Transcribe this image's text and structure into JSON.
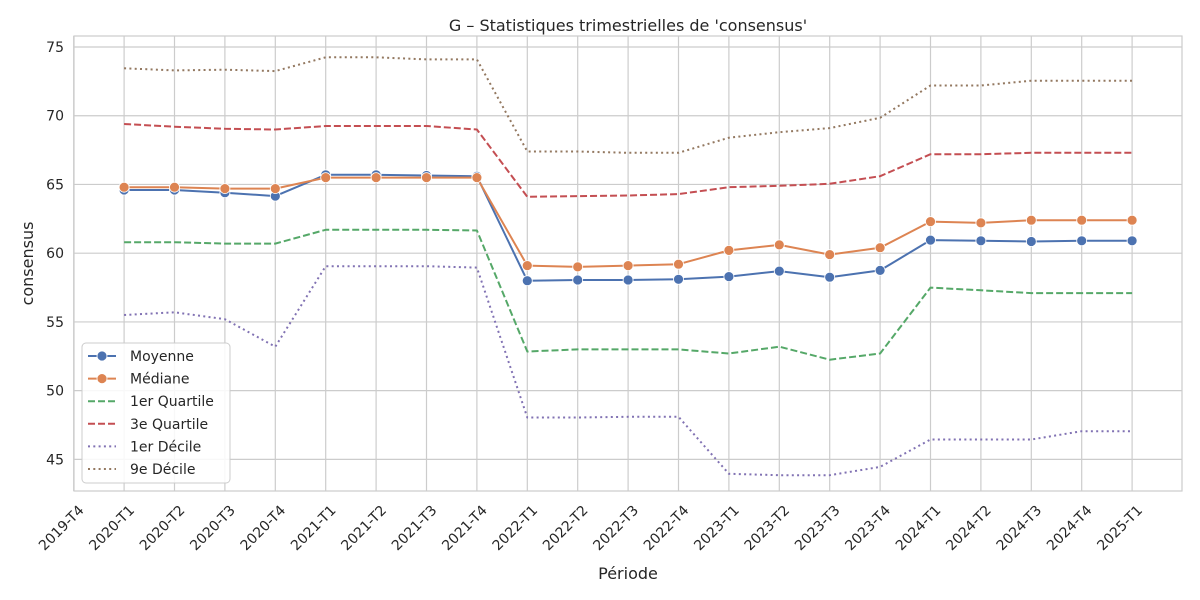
{
  "chart_data": {
    "type": "line",
    "title": "G – Statistiques trimestrielles de 'consensus'",
    "xlabel": "Période",
    "ylabel": "consensus",
    "categories": [
      "2019-T4",
      "2020-T1",
      "2020-T2",
      "2020-T3",
      "2020-T4",
      "2021-T1",
      "2021-T2",
      "2021-T3",
      "2021-T4",
      "2022-T1",
      "2022-T2",
      "2022-T3",
      "2022-T4",
      "2023-T1",
      "2023-T2",
      "2023-T3",
      "2023-T4",
      "2024-T1",
      "2024-T2",
      "2024-T3",
      "2024-T4",
      "2025-T1"
    ],
    "ylim": [
      42.7,
      75.8
    ],
    "yticks": [
      45,
      50,
      55,
      60,
      65,
      70,
      75
    ],
    "grid": true,
    "legend_position": "lower-left",
    "series": [
      {
        "name": "Moyenne",
        "color": "#4c72b0",
        "style": "solid",
        "marker": true,
        "values": [
          null,
          64.6,
          64.6,
          64.4,
          64.15,
          65.7,
          65.7,
          65.65,
          65.6,
          58.0,
          58.05,
          58.05,
          58.1,
          58.3,
          58.7,
          58.25,
          58.75,
          60.95,
          60.9,
          60.85,
          60.9,
          60.9
        ]
      },
      {
        "name": "Médiane",
        "color": "#dd8452",
        "style": "solid",
        "marker": true,
        "values": [
          null,
          64.8,
          64.8,
          64.7,
          64.7,
          65.5,
          65.5,
          65.5,
          65.5,
          59.1,
          59.0,
          59.1,
          59.2,
          60.2,
          60.6,
          59.9,
          60.4,
          62.3,
          62.2,
          62.4,
          62.4,
          62.4
        ]
      },
      {
        "name": "1er Quartile",
        "color": "#55a868",
        "style": "dashed",
        "marker": false,
        "values": [
          null,
          60.8,
          60.8,
          60.7,
          60.7,
          61.7,
          61.7,
          61.7,
          61.65,
          52.85,
          53.0,
          53.0,
          53.0,
          52.7,
          53.2,
          52.25,
          52.7,
          57.5,
          57.3,
          57.1,
          57.1,
          57.1
        ]
      },
      {
        "name": "3e Quartile",
        "color": "#c44e52",
        "style": "dashed",
        "marker": false,
        "values": [
          null,
          69.4,
          69.2,
          69.05,
          69.0,
          69.25,
          69.25,
          69.25,
          69.0,
          64.1,
          64.15,
          64.2,
          64.3,
          64.8,
          64.9,
          65.05,
          65.6,
          67.2,
          67.2,
          67.3,
          67.3,
          67.3
        ]
      },
      {
        "name": "1er Décile",
        "color": "#8172b3",
        "style": "dotted",
        "marker": false,
        "values": [
          null,
          55.5,
          55.7,
          55.2,
          53.2,
          59.05,
          59.05,
          59.05,
          58.95,
          48.05,
          48.05,
          48.1,
          48.1,
          43.95,
          43.85,
          43.85,
          44.45,
          46.45,
          46.45,
          46.45,
          47.05,
          47.05
        ]
      },
      {
        "name": "9e Décile",
        "color": "#937860",
        "style": "dotted",
        "marker": false,
        "values": [
          null,
          73.45,
          73.3,
          73.35,
          73.25,
          74.25,
          74.25,
          74.1,
          74.1,
          67.4,
          67.4,
          67.3,
          67.3,
          68.4,
          68.8,
          69.1,
          69.85,
          72.2,
          72.2,
          72.55,
          72.55,
          72.55
        ]
      }
    ]
  }
}
